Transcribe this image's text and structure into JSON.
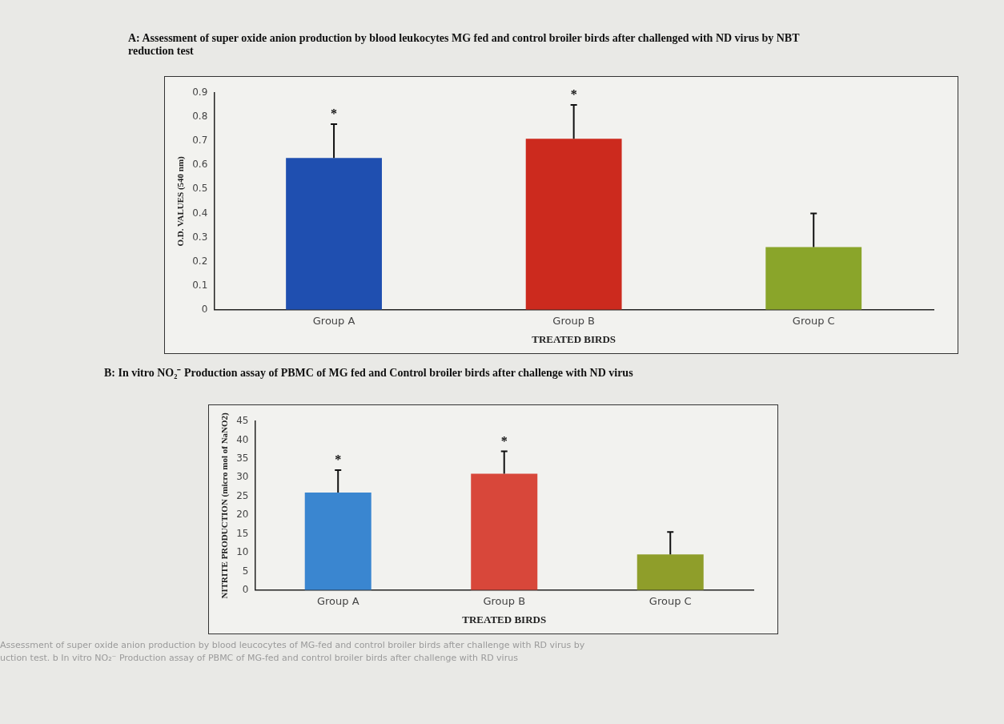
{
  "chart_data": [
    {
      "type": "bar",
      "title": "A: Assessment of super oxide anion production by blood leukocytes MG fed and control broiler birds after challenged with ND virus by NBT reduction test",
      "xlabel": "TREATED BIRDS",
      "ylabel": "O.D. VALUES (540 nm)",
      "categories": [
        "Group A",
        "Group B",
        "Group C"
      ],
      "values": [
        0.63,
        0.71,
        0.26
      ],
      "colors": [
        "#1f4fb0",
        "#cc2a1e",
        "#8aa52a"
      ],
      "errors": [
        [
          0.63,
          0.77
        ],
        [
          0.71,
          0.85
        ],
        [
          0.26,
          0.4
        ]
      ],
      "ylim": [
        0,
        0.9
      ],
      "yticks": [
        0,
        0.1,
        0.2,
        0.3,
        0.4,
        0.5,
        0.6,
        0.7,
        0.8,
        0.9
      ],
      "grid": false,
      "legend": false,
      "annotations": [
        "*",
        "*"
      ]
    },
    {
      "type": "bar",
      "title": "B: In vitro NO₂⁻ Production assay of PBMC of MG fed and Control broiler birds after challenge with ND virus",
      "xlabel": "TREATED BIRDS",
      "ylabel": "NITRITE PRODUCTION (micro mol of NaNO2)",
      "categories": [
        "Group A",
        "Group B",
        "Group C"
      ],
      "values": [
        26,
        31,
        9.5
      ],
      "colors": [
        "#3a86d0",
        "#d8473a",
        "#8f9e2a"
      ],
      "errors": [
        [
          26,
          32
        ],
        [
          31,
          37
        ],
        [
          9.5,
          15.5
        ]
      ],
      "ylim": [
        0,
        45
      ],
      "yticks": [
        0,
        5,
        10,
        15,
        20,
        25,
        30,
        35,
        40,
        45
      ],
      "grid": false,
      "legend": false,
      "annotations": [
        "*",
        "*",
        "Assessment of super oxide anion production by blood leucocytes of MG-fed and control broiler birds after challenge with RD virus by",
        "uction test. b In vitro NO₂⁻ Production assay of PBMC of MG-fed and control broiler birds after challenge with RD virus"
      ]
    }
  ]
}
